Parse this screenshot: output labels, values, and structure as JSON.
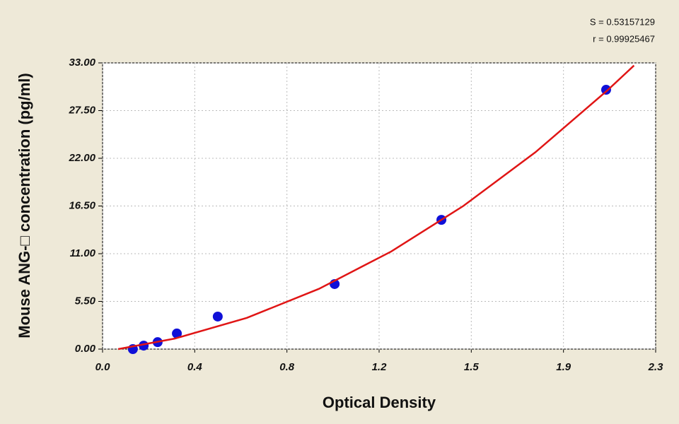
{
  "chart_data": {
    "type": "scatter",
    "annotations": [
      "S = 0.53157129",
      "r = 0.99925467"
    ],
    "xlabel": "Optical Density",
    "ylabel": "Mouse ANG-□  concentration (pg/ml)",
    "xlim": [
      0,
      2.3
    ],
    "ylim": [
      0,
      33
    ],
    "xticks": [
      {
        "value": 0,
        "label": "0.0"
      },
      {
        "value": 0.3833,
        "label": "0.4"
      },
      {
        "value": 0.7667,
        "label": "0.8"
      },
      {
        "value": 1.15,
        "label": "1.2"
      },
      {
        "value": 1.5333,
        "label": "1.5"
      },
      {
        "value": 1.9167,
        "label": "1.9"
      },
      2.3
    ],
    "yticks": [
      {
        "value": 0,
        "label": "0.00"
      },
      {
        "value": 5.5,
        "label": "5.50"
      },
      {
        "value": 11,
        "label": "11.00"
      },
      {
        "value": 16.5,
        "label": "16.50"
      },
      {
        "value": 22,
        "label": "22.00"
      },
      {
        "value": 27.5,
        "label": "27.50"
      },
      {
        "value": 33,
        "label": "33.00"
      }
    ],
    "grid": true,
    "series": [
      {
        "color": "#1010d8",
        "x": [
          0.126,
          0.171,
          0.229,
          0.309,
          0.479,
          0.965,
          1.409,
          2.094
        ],
        "values": [
          0,
          0.4,
          0.8,
          1.8,
          3.75,
          7.5,
          14.9,
          29.9
        ]
      },
      {
        "color": "#e01515",
        "fit": true,
        "x": [
          0.065,
          0.3,
          0.6,
          0.9,
          1.2,
          1.5,
          1.8,
          2.1,
          2.21
        ],
        "values": [
          0,
          1.21,
          3.6,
          6.95,
          11.25,
          16.5,
          22.7,
          29.85,
          32.7
        ]
      }
    ]
  }
}
